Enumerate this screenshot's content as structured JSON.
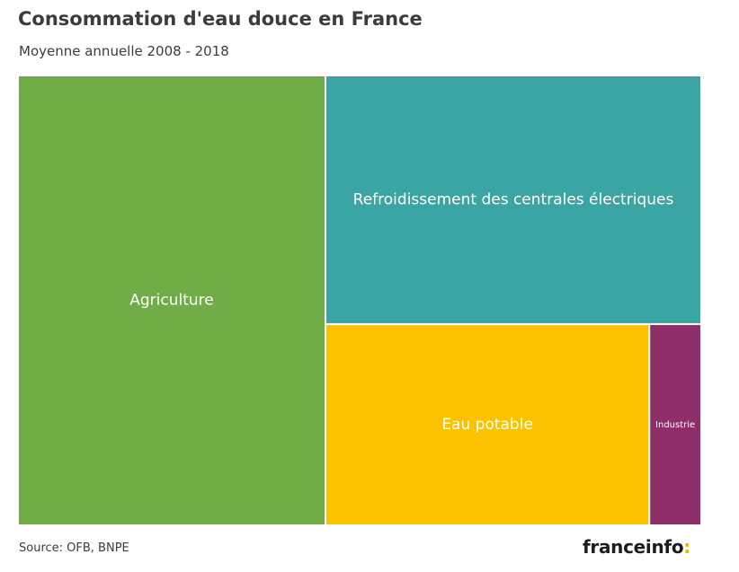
{
  "chart_data": {
    "type": "treemap",
    "title": "Consommation d'eau douce en France",
    "subtitle": "Moyenne annuelle 2008 - 2018",
    "source": "Source: OFB, BNPE",
    "unit": "% (estimated share of total area)",
    "items": [
      {
        "label": "Agriculture",
        "value": 45,
        "color": "#71ad47"
      },
      {
        "label": "Refroidissement des centrales électriques",
        "value": 30.4,
        "color": "#3aa5a3"
      },
      {
        "label": "Eau potable",
        "value": 21.2,
        "color": "#fcc200"
      },
      {
        "label": "Industrie",
        "value": 3.4,
        "color": "#8e2f69"
      }
    ]
  },
  "brand": {
    "name": "franceinfo",
    "suffix": ":",
    "accent": "#f2b500"
  }
}
